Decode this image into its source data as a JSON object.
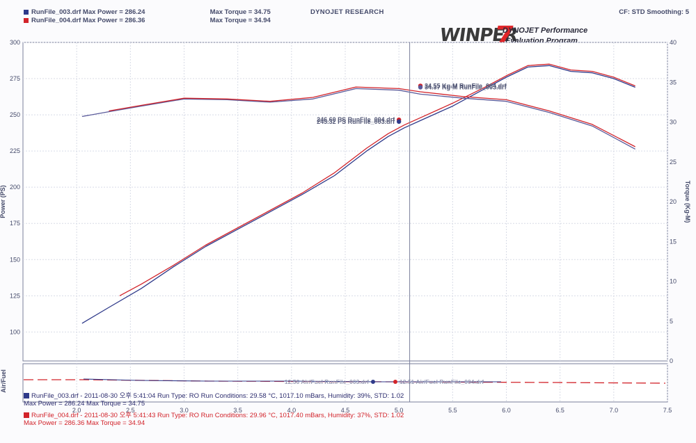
{
  "header": {
    "legend": [
      {
        "file": "RunFile_003.drf",
        "max_power": "Max Power = 286.24",
        "max_torque": "Max Torque = 34.75",
        "color": "#2f3a8a"
      },
      {
        "file": "RunFile_004.drf",
        "max_power": "Max Power = 286.36",
        "max_torque": "Max Torque = 34.94",
        "color": "#d2232a"
      }
    ],
    "center_title": "DYNOJET RESEARCH",
    "right_info": "CF: STD  Smoothing: 5"
  },
  "logo": {
    "mark": "WINPER",
    "seven": "7",
    "line1": "DYNOJET Performance",
    "line2": "Evaluation Program"
  },
  "chart_data": {
    "type": "line",
    "xlabel": "",
    "ylabel_left": "Power (PS)",
    "ylabel_right": "Torque (Kg-M)",
    "ylabel_lower": "Air/Fuel",
    "xlim": [
      1.5,
      7.5
    ],
    "ylim_left": [
      80,
      300
    ],
    "ylim_right": [
      0,
      40
    ],
    "x_ticks": [
      "2.0",
      "2.5",
      "3.0",
      "3.5",
      "4.0",
      "4.5",
      "5.0",
      "5.5",
      "6.0",
      "6.5",
      "7.0",
      "7.5"
    ],
    "y_left_ticks": [
      "100",
      "125",
      "150",
      "175",
      "200",
      "225",
      "250",
      "275",
      "300"
    ],
    "y_right_ticks": [
      "0",
      "5",
      "10",
      "15",
      "20",
      "25",
      "30",
      "35",
      "40"
    ],
    "grid": true,
    "cursor_x": 5.1,
    "series": [
      {
        "name": "RunFile_003.drf",
        "kind": "power",
        "axis": "left",
        "color": "#2f3a8a",
        "x": [
          2.05,
          2.3,
          2.6,
          2.9,
          3.2,
          3.5,
          3.8,
          4.1,
          4.4,
          4.7,
          4.9,
          5.05,
          5.2,
          5.5,
          5.8,
          6.0,
          6.2,
          6.4,
          6.6,
          6.8,
          7.0,
          7.2
        ],
        "y": [
          106,
          117,
          130,
          145,
          159,
          171,
          183,
          195,
          208,
          225,
          235,
          241,
          246,
          256,
          268,
          276,
          283,
          284,
          280,
          279,
          275,
          269
        ]
      },
      {
        "name": "RunFile_004.drf",
        "kind": "power",
        "axis": "left",
        "color": "#d2232a",
        "x": [
          2.4,
          2.6,
          2.9,
          3.2,
          3.5,
          3.8,
          4.1,
          4.4,
          4.7,
          4.9,
          5.05,
          5.2,
          5.5,
          5.8,
          6.0,
          6.2,
          6.4,
          6.6,
          6.8,
          7.0,
          7.2
        ],
        "y": [
          125,
          133,
          146,
          160,
          172,
          184,
          196,
          210,
          227,
          237,
          243,
          248,
          258,
          269,
          277,
          284,
          285,
          281,
          280,
          276,
          270
        ]
      },
      {
        "name": "RunFile_003.drf",
        "kind": "torque",
        "axis": "right",
        "color": "#5a5a9a",
        "x": [
          2.05,
          2.3,
          2.6,
          3.0,
          3.4,
          3.8,
          4.2,
          4.6,
          5.0,
          5.2,
          5.6,
          6.0,
          6.4,
          6.8,
          7.2
        ],
        "y": [
          30.7,
          31.3,
          32.0,
          32.9,
          32.8,
          32.5,
          32.9,
          34.2,
          34.0,
          33.5,
          33.0,
          32.6,
          31.2,
          29.5,
          26.6
        ]
      },
      {
        "name": "RunFile_004.drf",
        "kind": "torque",
        "axis": "right",
        "color": "#d2232a",
        "x": [
          2.3,
          2.6,
          3.0,
          3.4,
          3.8,
          4.2,
          4.6,
          5.0,
          5.2,
          5.6,
          6.0,
          6.4,
          6.8,
          7.2
        ],
        "y": [
          31.4,
          32.1,
          33.0,
          32.9,
          32.6,
          33.1,
          34.4,
          34.2,
          33.8,
          33.2,
          32.8,
          31.4,
          29.7,
          26.9
        ]
      }
    ],
    "markers": [
      {
        "label": "34.55 Kg-M RunFile_004.drf",
        "x": 5.2,
        "y": 34.55,
        "axis": "right",
        "color": "#d2232a"
      },
      {
        "label": "34.37 Kg-M RunFile_003.drf",
        "x": 5.2,
        "y": 34.37,
        "axis": "right",
        "color": "#5a5a9a"
      },
      {
        "label": "246.60 PS RunFile_004.drf",
        "x": 5.0,
        "y": 246.6,
        "axis": "left",
        "color": "#d2232a"
      },
      {
        "label": "245.32 PS RunFile_003.drf",
        "x": 5.0,
        "y": 245.32,
        "axis": "left",
        "color": "#2f3a8a"
      }
    ],
    "afr_markers": [
      {
        "label": "12.56 Air/Fuel RunFile_003.drf",
        "color": "#2f3a8a"
      },
      {
        "label": "12.51 Air/Fuel RunFile_004.drf",
        "color": "#d2232a"
      }
    ]
  },
  "footer": [
    {
      "line1": "RunFile_003.drf - 2011-08-30 오후 5:41:04  Run Type: RO  Run Conditions: 29.58 °C, 1017.10 mBars,  Humidity: 39%, STD: 1.02",
      "line2": "Max Power = 286.24  Max Torque = 34.75",
      "color": "#2f3a8a"
    },
    {
      "line1": "RunFile_004.drf - 2011-08-30 오후 5:41:43  Run Type: RO  Run Conditions: 29.96 °C, 1017.40 mBars,  Humidity: 37%, STD: 1.02",
      "line2": "Max Power = 286.36  Max Torque = 34.94",
      "color": "#d2232a"
    }
  ]
}
